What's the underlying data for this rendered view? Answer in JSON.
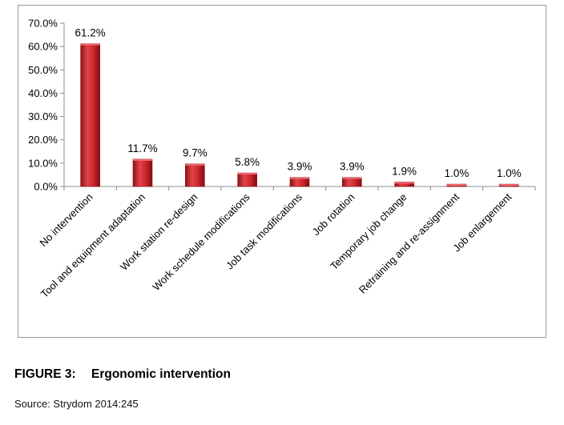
{
  "chart_data": {
    "type": "bar",
    "categories": [
      "No intervention",
      "Tool and equipment adaptation",
      "Work station re-design",
      "Work schedule modifications",
      "Job task modifications",
      "Job rotation",
      "Temporary job change",
      "Retraining and re-assignment",
      "Job enlargement"
    ],
    "values": [
      61.2,
      11.7,
      9.7,
      5.8,
      3.9,
      3.9,
      1.9,
      1.0,
      1.0
    ],
    "data_labels": [
      "61.2%",
      "11.7%",
      "9.7%",
      "5.8%",
      "3.9%",
      "3.9%",
      "1.9%",
      "1.0%",
      "1.0%"
    ],
    "y_ticks": [
      "0.0%",
      "10.0%",
      "20.0%",
      "30.0%",
      "40.0%",
      "50.0%",
      "60.0%",
      "70.0%"
    ],
    "ylim": [
      0,
      70
    ],
    "grid": false,
    "legend": "none",
    "bar_color": "#c8242a"
  },
  "caption": {
    "figure_number": "FIGURE 3:",
    "title": "Ergonomic intervention"
  },
  "source": "Source: Strydom 2014:245"
}
